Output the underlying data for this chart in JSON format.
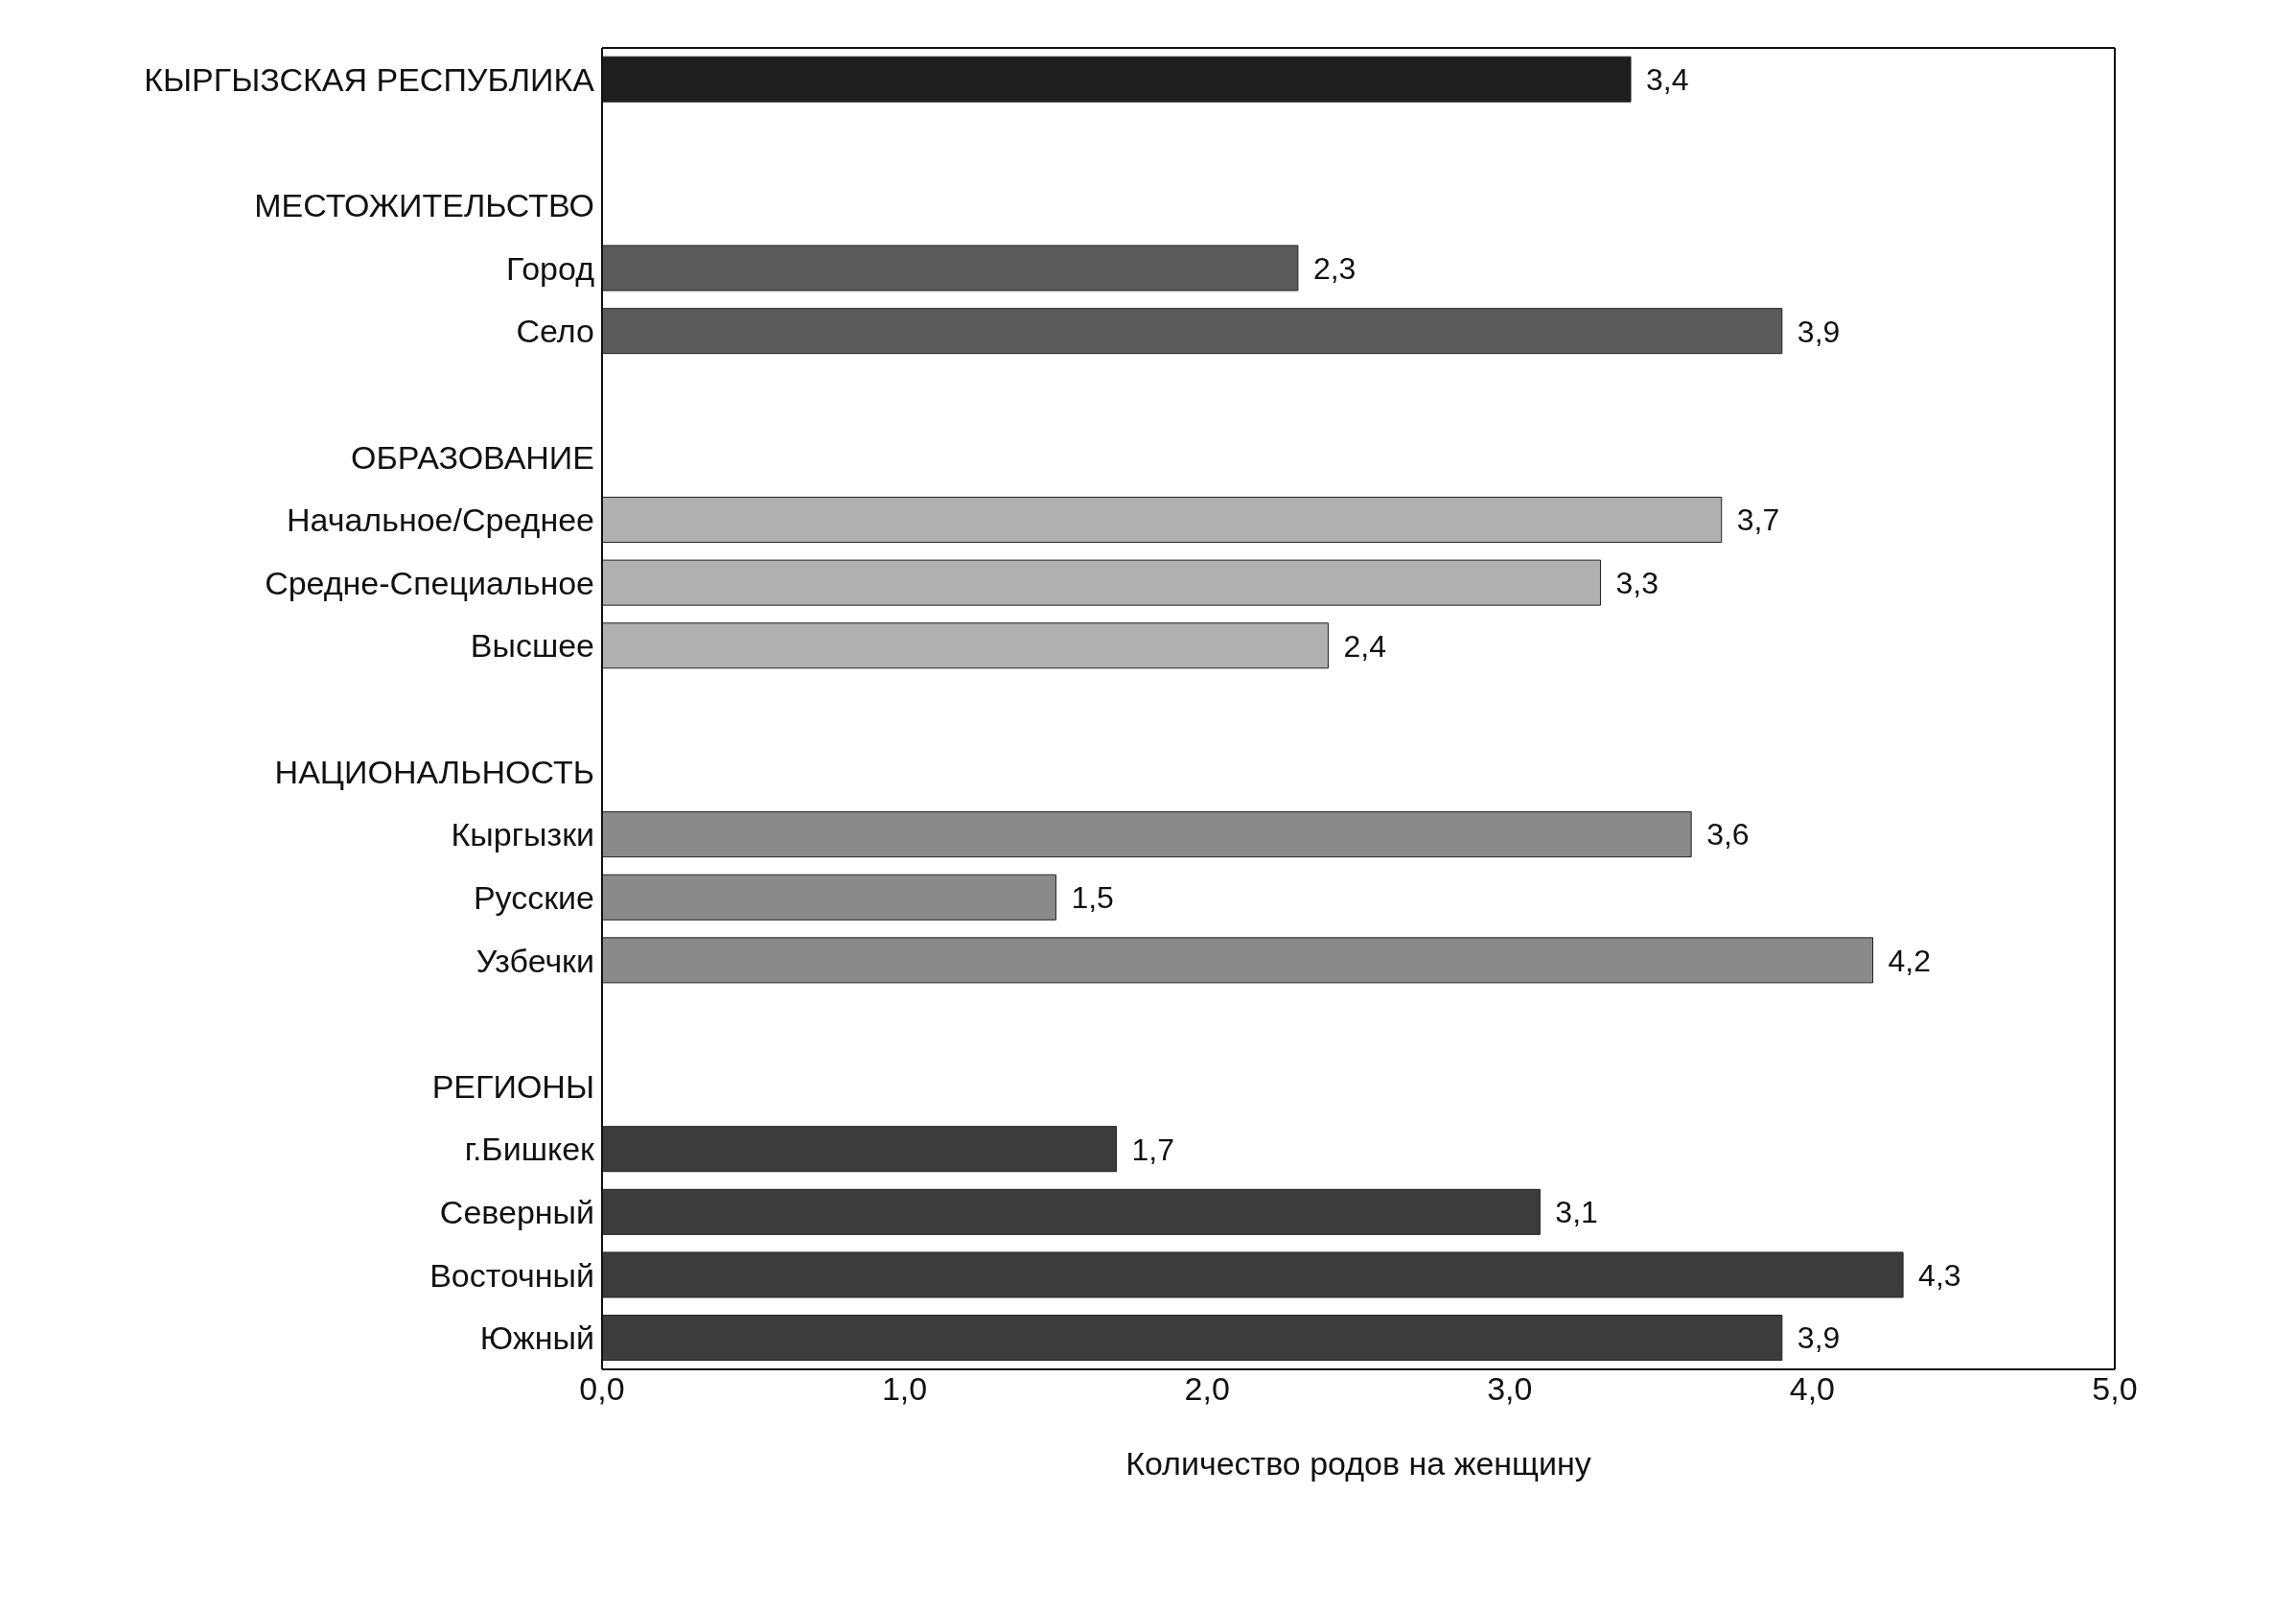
{
  "chart_data": {
    "type": "bar",
    "orientation": "horizontal",
    "xlabel": "Количество родов на женщину",
    "categories": [
      "КЫРГЫЗСКАЯ РЕСПУБЛИКА",
      null,
      "МЕСТОЖИТЕЛЬСТВО",
      "Город",
      "Село",
      null,
      "ОБРАЗОВАНИЕ",
      "Начальное/Среднее",
      "Средне-Специальное",
      "Высшее",
      null,
      "НАЦИОНАЛЬНОСТЬ",
      "Кыргызки",
      "Русские",
      "Узбечки",
      null,
      "РЕГИОНЫ",
      "г.Бишкек",
      "Северный",
      "Восточный",
      "Южный"
    ],
    "values": [
      3.4,
      null,
      null,
      2.3,
      3.9,
      null,
      null,
      3.7,
      3.3,
      2.4,
      null,
      null,
      3.6,
      1.5,
      4.2,
      null,
      null,
      1.7,
      3.1,
      4.3,
      3.9
    ],
    "value_labels": [
      "3,4",
      null,
      null,
      "2,3",
      "3,9",
      null,
      null,
      "3,7",
      "3,3",
      "2,4",
      null,
      null,
      "3,6",
      "1,5",
      "4,2",
      null,
      null,
      "1,7",
      "3,1",
      "4,3",
      "3,9"
    ],
    "colors": [
      "#1e1e1e",
      null,
      null,
      "#5a5a5a",
      "#5a5a5a",
      null,
      null,
      "#b0b0b0",
      "#b0b0b0",
      "#b0b0b0",
      null,
      null,
      "#8a8a8a",
      "#8a8a8a",
      "#8a8a8a",
      null,
      null,
      "#3c3c3c",
      "#3c3c3c",
      "#3c3c3c",
      "#3c3c3c"
    ],
    "xlim": [
      0,
      5
    ],
    "xticks": [
      {
        "value": 0,
        "label": "0,0"
      },
      {
        "value": 1,
        "label": "1,0"
      },
      {
        "value": 2,
        "label": "2,0"
      },
      {
        "value": 3,
        "label": "3,0"
      },
      {
        "value": 4,
        "label": "4,0"
      },
      {
        "value": 5,
        "label": "5,0"
      }
    ],
    "grid": false
  }
}
